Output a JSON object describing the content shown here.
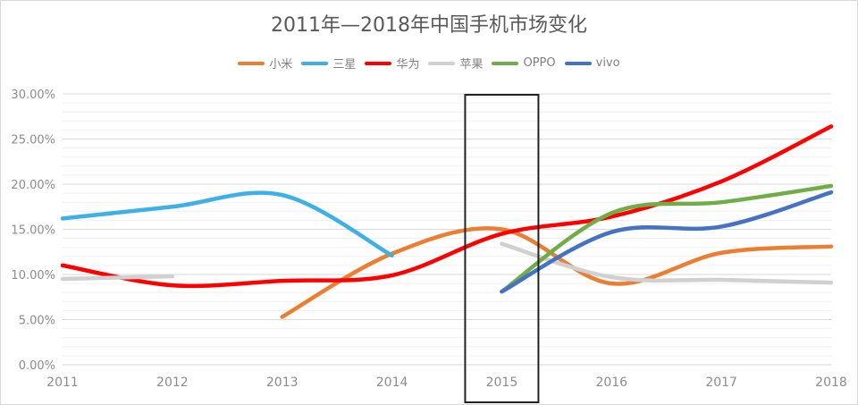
{
  "chart_data": {
    "type": "line",
    "title": "2011年—2018年中国手机市场变化",
    "xlabel": "",
    "ylabel": "",
    "categories": [
      "2011",
      "2012",
      "2013",
      "2014",
      "2015",
      "2016",
      "2017",
      "2018"
    ],
    "y_ticks": [
      "0.00%",
      "5.00%",
      "10.00%",
      "15.00%",
      "20.00%",
      "25.00%",
      "30.00%"
    ],
    "ylim": [
      0,
      30
    ],
    "legend_position": "top",
    "highlight_category": "2015",
    "series": [
      {
        "name": "小米",
        "color": "#ED7D31",
        "values": [
          null,
          null,
          5.3,
          12.3,
          15.0,
          9.0,
          12.4,
          13.1
        ]
      },
      {
        "name": "三星",
        "color": "#3DB0E6",
        "values": [
          16.2,
          17.5,
          18.8,
          12.1,
          null,
          null,
          null,
          null
        ]
      },
      {
        "name": "华为",
        "color": "#FF0000",
        "values": [
          11.0,
          8.8,
          9.3,
          9.9,
          14.5,
          16.4,
          20.3,
          26.4
        ]
      },
      {
        "name": "苹果",
        "color": "#D0D0D0",
        "values": [
          9.5,
          9.8,
          null,
          null,
          13.4,
          9.7,
          9.4,
          9.1
        ]
      },
      {
        "name": "OPPO",
        "color": "#70AD47",
        "values": [
          null,
          null,
          null,
          null,
          8.1,
          16.8,
          18.0,
          19.8
        ]
      },
      {
        "name": "vivo",
        "color": "#4472C4",
        "values": [
          null,
          null,
          null,
          null,
          8.1,
          14.7,
          15.3,
          19.1
        ]
      }
    ]
  }
}
